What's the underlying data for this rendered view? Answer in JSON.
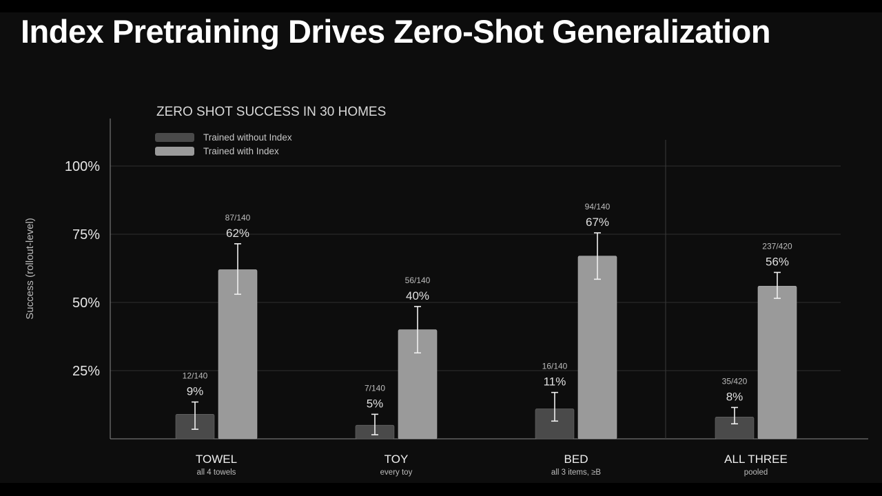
{
  "slide": {
    "title": "Index Pretraining Drives Zero-Shot Generalization"
  },
  "chart_data": {
    "type": "bar",
    "title": "ZERO SHOT SUCCESS IN 30 HOMES",
    "ylabel": "Success (rollout-level)",
    "ylim": [
      0,
      100
    ],
    "yticks": [
      {
        "value": 25,
        "label": "25%"
      },
      {
        "value": 50,
        "label": "50%"
      },
      {
        "value": 75,
        "label": "75%"
      },
      {
        "value": 100,
        "label": "100%"
      }
    ],
    "grid": true,
    "legend_position": "top-left",
    "categories": [
      {
        "label": "TOWEL",
        "sublabel": "all 4 towels"
      },
      {
        "label": "TOY",
        "sublabel": "every toy"
      },
      {
        "label": "BED",
        "sublabel": "all 3 items, ≥B"
      },
      {
        "label": "ALL THREE",
        "sublabel": "pooled"
      }
    ],
    "series": [
      {
        "name": "Trained without Index",
        "color": "#4a4a4a",
        "values": [
          9,
          5,
          11,
          8
        ],
        "value_labels": [
          "9%",
          "5%",
          "11%",
          "8%"
        ],
        "counts": [
          "12/140",
          "7/140",
          "16/140",
          "35/420"
        ],
        "error_low": [
          3.5,
          1.5,
          6.5,
          5.5
        ],
        "error_high": [
          13.5,
          9,
          17,
          11.5
        ]
      },
      {
        "name": "Trained with Index",
        "color": "#9a9a9a",
        "values": [
          62,
          40,
          67,
          56
        ],
        "value_labels": [
          "62%",
          "40%",
          "67%",
          "56%"
        ],
        "counts": [
          "87/140",
          "56/140",
          "94/140",
          "237/420"
        ],
        "error_low": [
          53,
          31.5,
          58.5,
          51.5
        ],
        "error_high": [
          71.5,
          48.5,
          75.5,
          61
        ]
      }
    ]
  }
}
